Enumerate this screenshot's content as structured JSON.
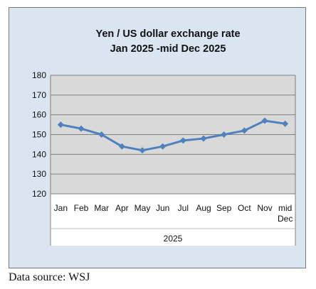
{
  "colors": {
    "frame_background": "#dbe5f1",
    "plot_background": "#d9d9d9",
    "axis_panel_background": "#ffffff",
    "line": "#4f81bd",
    "gridline": "#808080"
  },
  "chart_data": {
    "type": "line",
    "title_lines": [
      "Yen / US dollar exchange rate",
      "Jan 2025  -mid Dec 2025"
    ],
    "categories": [
      "Jan",
      "Feb",
      "Mar",
      "Apr",
      "May",
      "Jun",
      "Jul",
      "Aug",
      "Sep",
      "Oct",
      "Nov",
      "mid Dec"
    ],
    "category_group": "2025",
    "series": [
      {
        "values": [
          155,
          153,
          150,
          144,
          142,
          144,
          147,
          148,
          150,
          152,
          157,
          155.5
        ]
      }
    ],
    "ylim": [
      120,
      180
    ],
    "y_ticks": [
      120,
      130,
      140,
      150,
      160,
      170,
      180
    ],
    "grid": true,
    "legend": "none",
    "marker": "diamond"
  },
  "source_note": "Data source: WSJ"
}
